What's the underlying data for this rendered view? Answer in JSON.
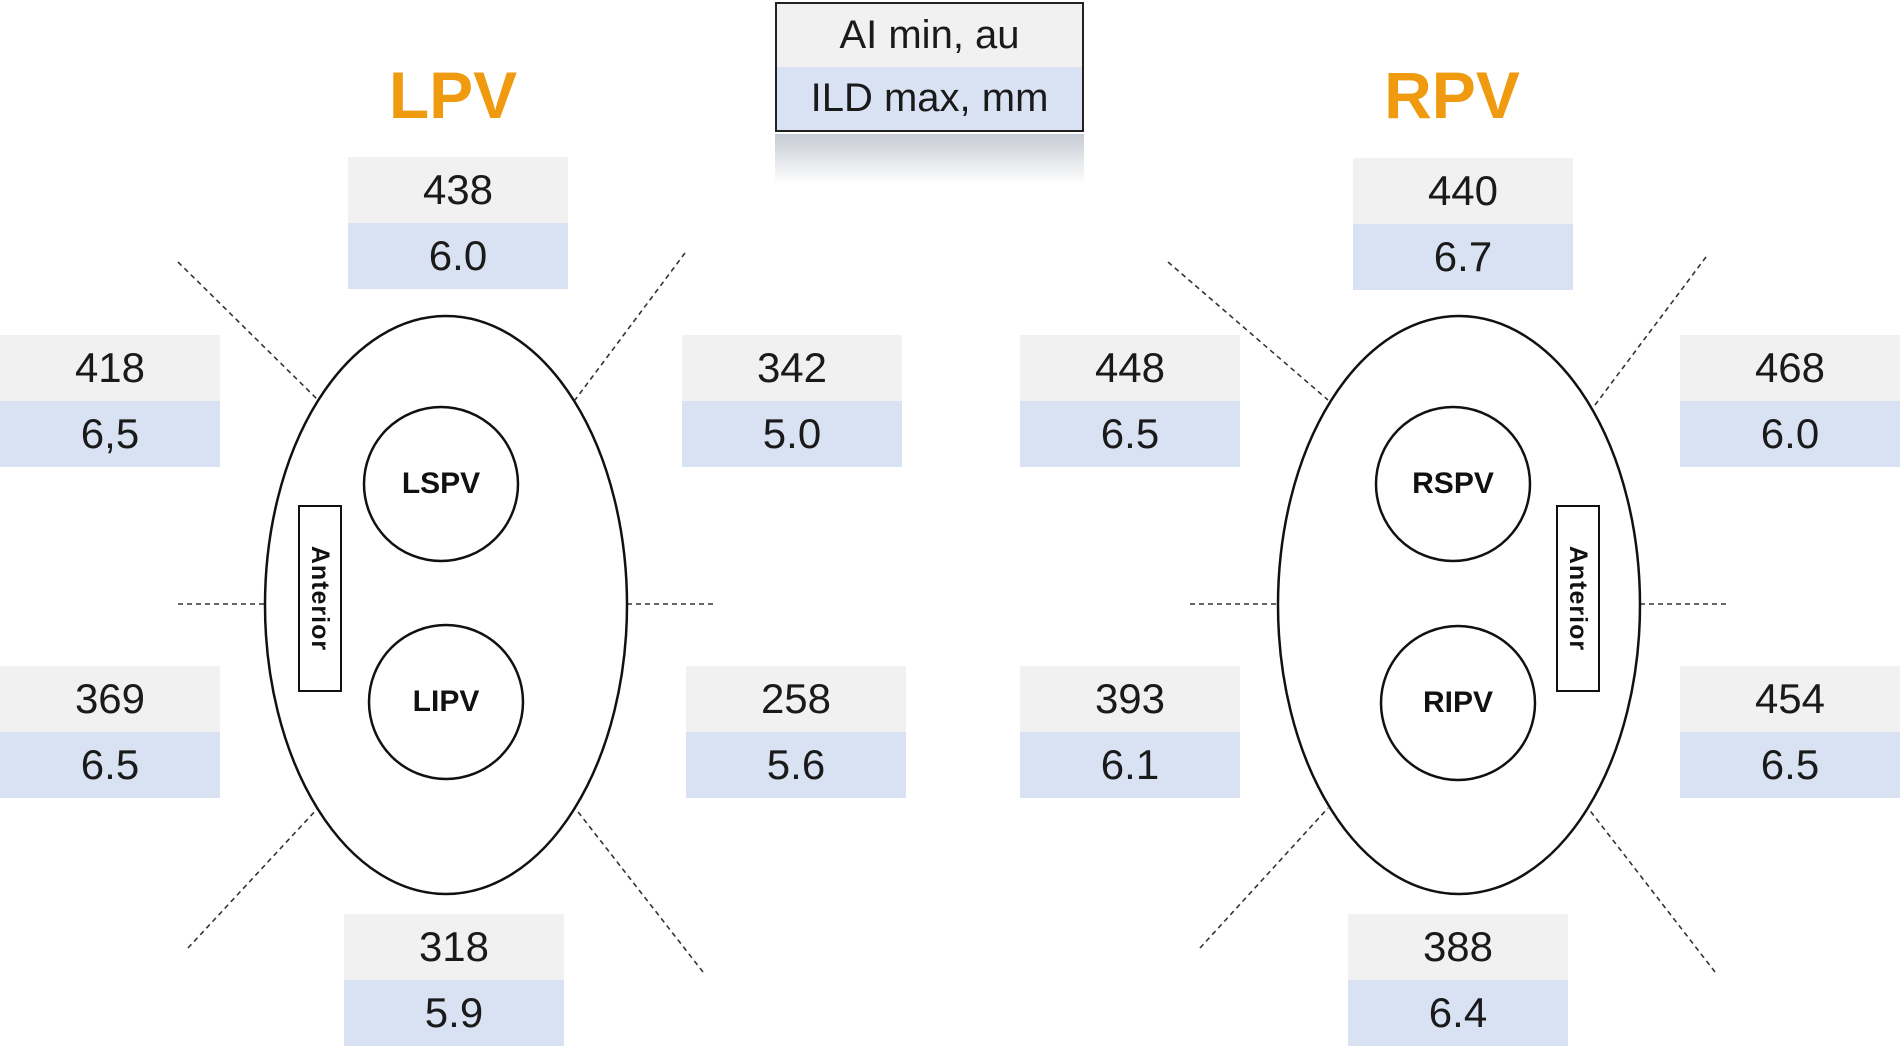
{
  "legend": {
    "ai_label": "AI min, au",
    "ild_label": "ILD max, mm"
  },
  "left": {
    "title": "LPV",
    "superior_vein": "LSPV",
    "inferior_vein": "LIPV",
    "anterior_label": "Anterior",
    "sectors": {
      "top": {
        "ai": "438",
        "ild": "6.0"
      },
      "upper_left": {
        "ai": "418",
        "ild": "6,5"
      },
      "upper_right": {
        "ai": "342",
        "ild": "5.0"
      },
      "lower_left": {
        "ai": "369",
        "ild": "6.5"
      },
      "lower_right": {
        "ai": "258",
        "ild": "5.6"
      },
      "bottom": {
        "ai": "318",
        "ild": "5.9"
      }
    }
  },
  "right": {
    "title": "RPV",
    "superior_vein": "RSPV",
    "inferior_vein": "RIPV",
    "anterior_label": "Anterior",
    "sectors": {
      "top": {
        "ai": "440",
        "ild": "6.7"
      },
      "upper_left": {
        "ai": "448",
        "ild": "6.5"
      },
      "upper_right": {
        "ai": "468",
        "ild": "6.0"
      },
      "lower_left": {
        "ai": "393",
        "ild": "6.1"
      },
      "lower_right": {
        "ai": "454",
        "ild": "6.5"
      },
      "bottom": {
        "ai": "388",
        "ild": "6.4"
      }
    }
  },
  "colors": {
    "title": "#f09a0f",
    "ai_fill": "#f1f1f1",
    "ild_fill": "#d9e2f3"
  }
}
